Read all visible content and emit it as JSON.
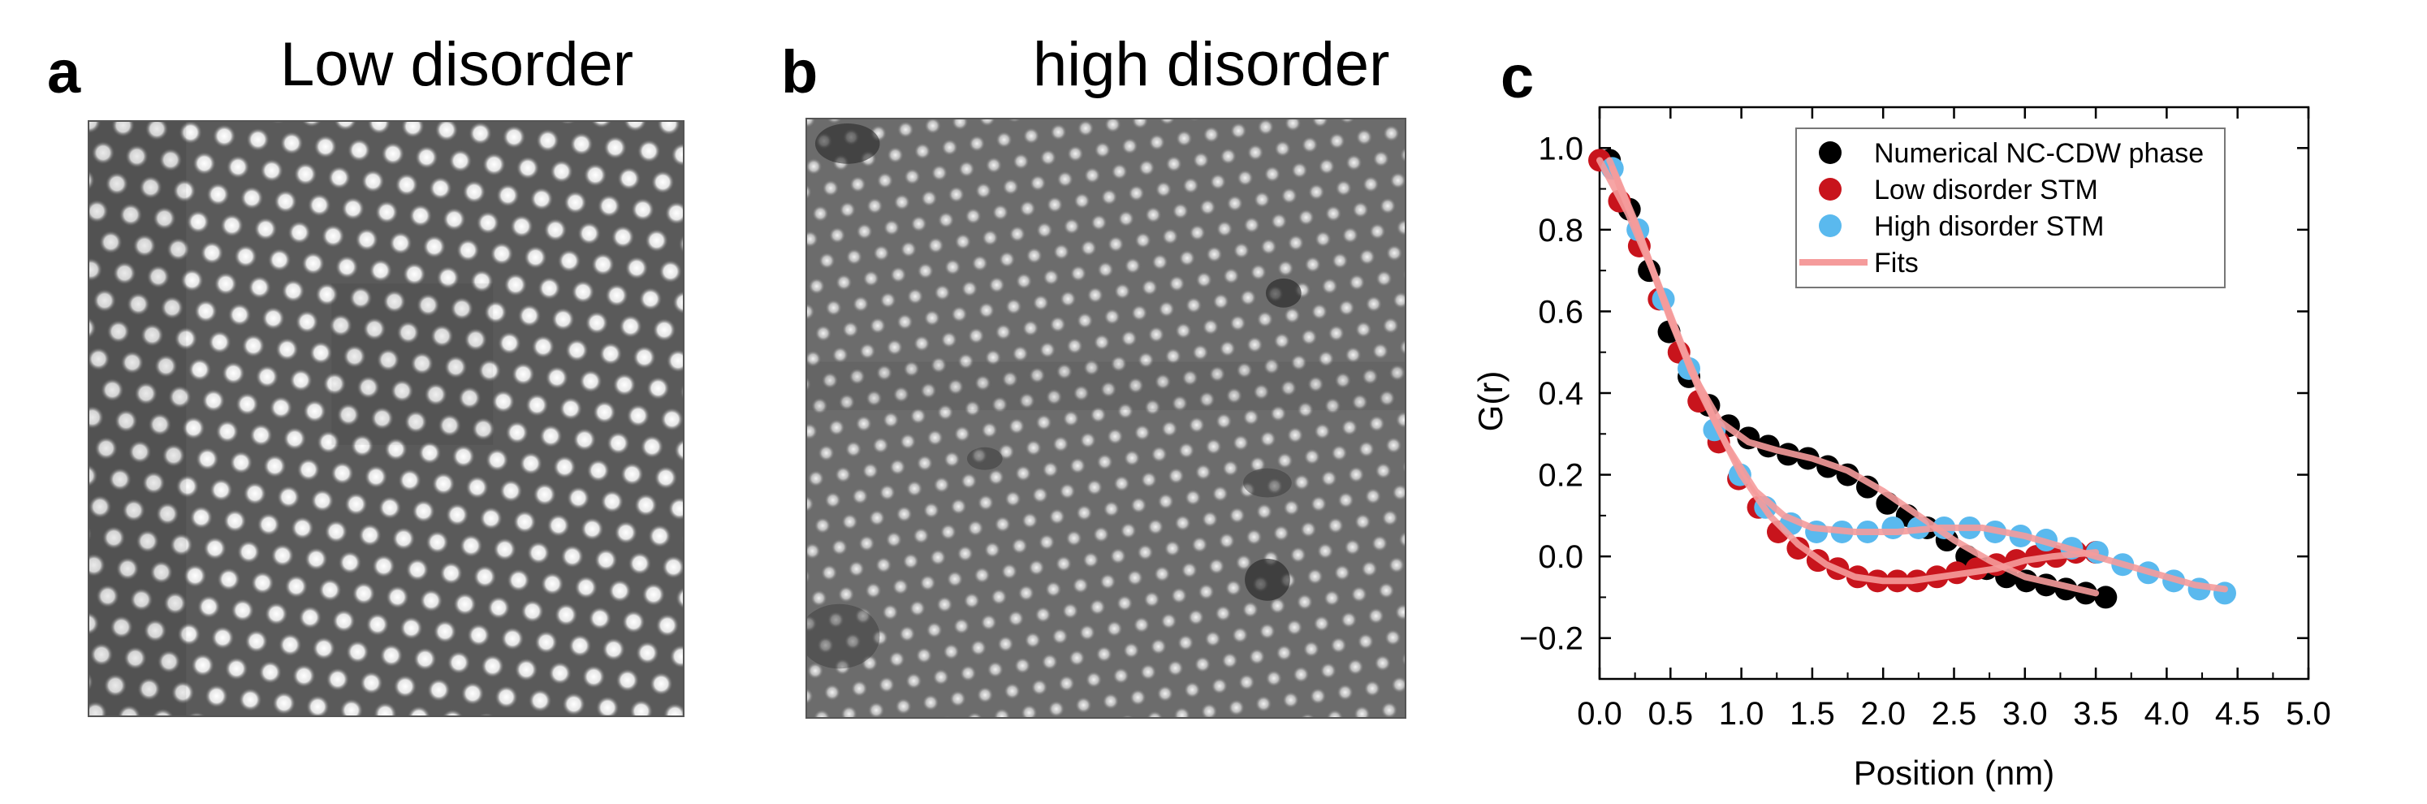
{
  "panels": {
    "a": {
      "letter": "a",
      "title": "Low disorder"
    },
    "b": {
      "letter": "b",
      "title": "high disorder"
    },
    "c": {
      "letter": "c"
    }
  },
  "colors": {
    "numerical": "#000000",
    "low": "#c8141c",
    "high": "#5ab9ee",
    "fits": "#f59b9b"
  },
  "chart_data": {
    "type": "scatter",
    "xlabel": "Position (nm)",
    "ylabel": "G(r)",
    "xlim": [
      0,
      5.0
    ],
    "ylim": [
      -0.3,
      1.1
    ],
    "xticks": [
      0.0,
      0.5,
      1.0,
      1.5,
      2.0,
      2.5,
      3.0,
      3.5,
      4.0,
      4.5,
      5.0
    ],
    "xtick_labels": [
      "0.0",
      "0.5",
      "1.0",
      "1.5",
      "2.0",
      "2.5",
      "3.0",
      "3.5",
      "4.0",
      "4.5",
      "5.0"
    ],
    "yticks": [
      -0.2,
      0.0,
      0.2,
      0.4,
      0.6,
      0.8,
      1.0
    ],
    "ytick_labels": [
      "−0.2",
      "0.0",
      "0.2",
      "0.4",
      "0.6",
      "0.8",
      "1.0"
    ],
    "legend_position": "top-right",
    "legend": [
      "Numerical NC-CDW phase",
      "Low disorder STM",
      "High disorder STM",
      "Fits"
    ],
    "series": [
      {
        "name": "Numerical NC-CDW phase",
        "color": "#000000",
        "x": [
          0.07,
          0.21,
          0.35,
          0.49,
          0.63,
          0.77,
          0.91,
          1.05,
          1.19,
          1.33,
          1.47,
          1.61,
          1.75,
          1.89,
          2.03,
          2.17,
          2.31,
          2.45,
          2.59,
          2.73,
          2.87,
          3.01,
          3.15,
          3.29,
          3.43,
          3.57
        ],
        "y": [
          0.97,
          0.85,
          0.7,
          0.55,
          0.44,
          0.37,
          0.32,
          0.29,
          0.27,
          0.25,
          0.24,
          0.22,
          0.2,
          0.17,
          0.13,
          0.1,
          0.07,
          0.04,
          0.0,
          -0.03,
          -0.05,
          -0.06,
          -0.07,
          -0.08,
          -0.09,
          -0.1
        ]
      },
      {
        "name": "Low disorder STM",
        "color": "#c8141c",
        "x": [
          0.0,
          0.14,
          0.28,
          0.42,
          0.56,
          0.7,
          0.84,
          0.98,
          1.12,
          1.26,
          1.4,
          1.54,
          1.68,
          1.82,
          1.96,
          2.1,
          2.24,
          2.38,
          2.52,
          2.66,
          2.8,
          2.94,
          3.08,
          3.22,
          3.36,
          3.5
        ],
        "y": [
          0.97,
          0.87,
          0.76,
          0.63,
          0.5,
          0.38,
          0.28,
          0.19,
          0.12,
          0.06,
          0.02,
          -0.01,
          -0.03,
          -0.05,
          -0.06,
          -0.06,
          -0.06,
          -0.05,
          -0.04,
          -0.03,
          -0.02,
          -0.01,
          0.0,
          0.0,
          0.01,
          0.01
        ]
      },
      {
        "name": "High disorder STM",
        "color": "#5ab9ee",
        "x": [
          0.09,
          0.27,
          0.45,
          0.63,
          0.81,
          0.99,
          1.17,
          1.35,
          1.53,
          1.71,
          1.89,
          2.07,
          2.25,
          2.43,
          2.61,
          2.79,
          2.97,
          3.15,
          3.33,
          3.51,
          3.69,
          3.87,
          4.05,
          4.23,
          4.41
        ],
        "y": [
          0.95,
          0.8,
          0.63,
          0.46,
          0.31,
          0.2,
          0.12,
          0.08,
          0.06,
          0.06,
          0.06,
          0.07,
          0.07,
          0.07,
          0.07,
          0.06,
          0.05,
          0.04,
          0.02,
          0.01,
          -0.02,
          -0.04,
          -0.06,
          -0.08,
          -0.09
        ]
      }
    ],
    "fits": [
      {
        "name": "Fits",
        "x": [
          0.07,
          0.25,
          0.45,
          0.65,
          0.85,
          1.05,
          1.25,
          1.5,
          1.75,
          2.0,
          2.25,
          2.5,
          2.75,
          3.0,
          3.25,
          3.5
        ],
        "y": [
          0.97,
          0.82,
          0.63,
          0.45,
          0.33,
          0.28,
          0.26,
          0.24,
          0.21,
          0.16,
          0.1,
          0.04,
          -0.01,
          -0.05,
          -0.07,
          -0.09
        ]
      },
      {
        "name": "Fits",
        "x": [
          0.0,
          0.2,
          0.4,
          0.6,
          0.8,
          1.0,
          1.2,
          1.4,
          1.6,
          1.8,
          2.0,
          2.2,
          2.4,
          2.6,
          2.8,
          3.0,
          3.2,
          3.5
        ],
        "y": [
          0.97,
          0.84,
          0.68,
          0.5,
          0.34,
          0.2,
          0.1,
          0.03,
          -0.02,
          -0.05,
          -0.06,
          -0.06,
          -0.05,
          -0.04,
          -0.03,
          -0.01,
          0.0,
          0.01
        ]
      },
      {
        "name": "Fits",
        "x": [
          0.09,
          0.3,
          0.5,
          0.7,
          0.9,
          1.1,
          1.3,
          1.5,
          1.8,
          2.1,
          2.4,
          2.7,
          3.0,
          3.3,
          3.6,
          3.9,
          4.2,
          4.41
        ],
        "y": [
          0.95,
          0.77,
          0.58,
          0.41,
          0.27,
          0.16,
          0.1,
          0.07,
          0.06,
          0.06,
          0.07,
          0.07,
          0.05,
          0.02,
          -0.01,
          -0.04,
          -0.07,
          -0.08
        ]
      }
    ]
  }
}
